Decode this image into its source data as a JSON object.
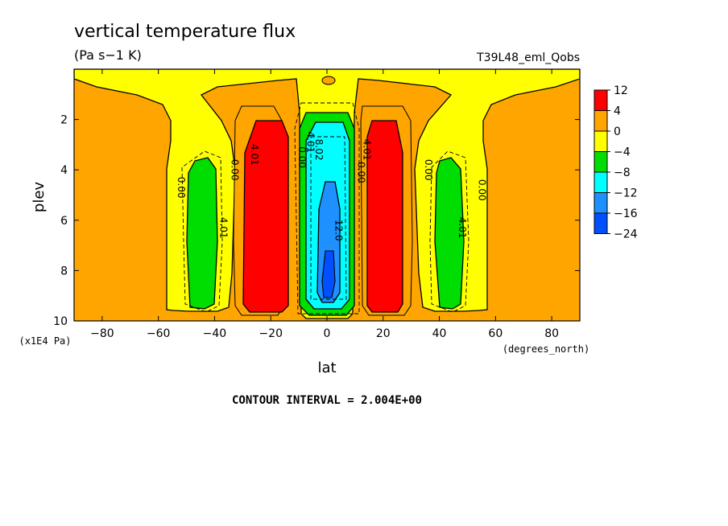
{
  "chart_data": {
    "type": "contour",
    "title": "vertical temperature flux",
    "units": "(Pa s−1 K)",
    "run_label": "T39L48_eml_Qobs",
    "xlabel": "lat",
    "xunits": "(degrees_north)",
    "ylabel": "plev",
    "yunits": "(x1E4 Pa)",
    "xlim": [
      -90,
      90
    ],
    "ylim": [
      10,
      0
    ],
    "x_ticks": [
      -80,
      -60,
      -40,
      -20,
      0,
      20,
      40,
      60,
      80
    ],
    "y_ticks": [
      2,
      4,
      6,
      8,
      10
    ],
    "footer": "CONTOUR INTERVAL = 2.004E+00",
    "contour_interval": 2.004,
    "colorbar": {
      "levels": [
        "12",
        "4",
        "0",
        "−4",
        "−8",
        "−12",
        "−16",
        "−24"
      ],
      "colors": [
        "#ff0000",
        "#ffa500",
        "#ffff00",
        "#00dd00",
        "#00ffff",
        "#1e90ff",
        "#0050ff"
      ]
    },
    "contour_labels": [
      {
        "text": "0.00",
        "lat": -53,
        "plev": 4.7
      },
      {
        "text": "4.01",
        "lat": -38,
        "plev": 6.3
      },
      {
        "text": "0.00",
        "lat": -34,
        "plev": 4.0
      },
      {
        "text": "4.01",
        "lat": -27,
        "plev": 3.4
      },
      {
        "text": "0.00",
        "lat": -10,
        "plev": 3.5
      },
      {
        "text": "4.01",
        "lat": -7,
        "plev": 2.9
      },
      {
        "text": "8.02",
        "lat": -4,
        "plev": 3.2
      },
      {
        "text": "12.0",
        "lat": 3,
        "plev": 6.4
      },
      {
        "text": "4.01",
        "lat": 13,
        "plev": 3.2
      },
      {
        "text": "0.00",
        "lat": 11,
        "plev": 4.1
      },
      {
        "text": "0.00",
        "lat": 35,
        "plev": 4.0
      },
      {
        "text": "4.01",
        "lat": 47,
        "plev": 6.3
      },
      {
        "text": "0.00",
        "lat": 54,
        "plev": 4.8
      }
    ]
  }
}
